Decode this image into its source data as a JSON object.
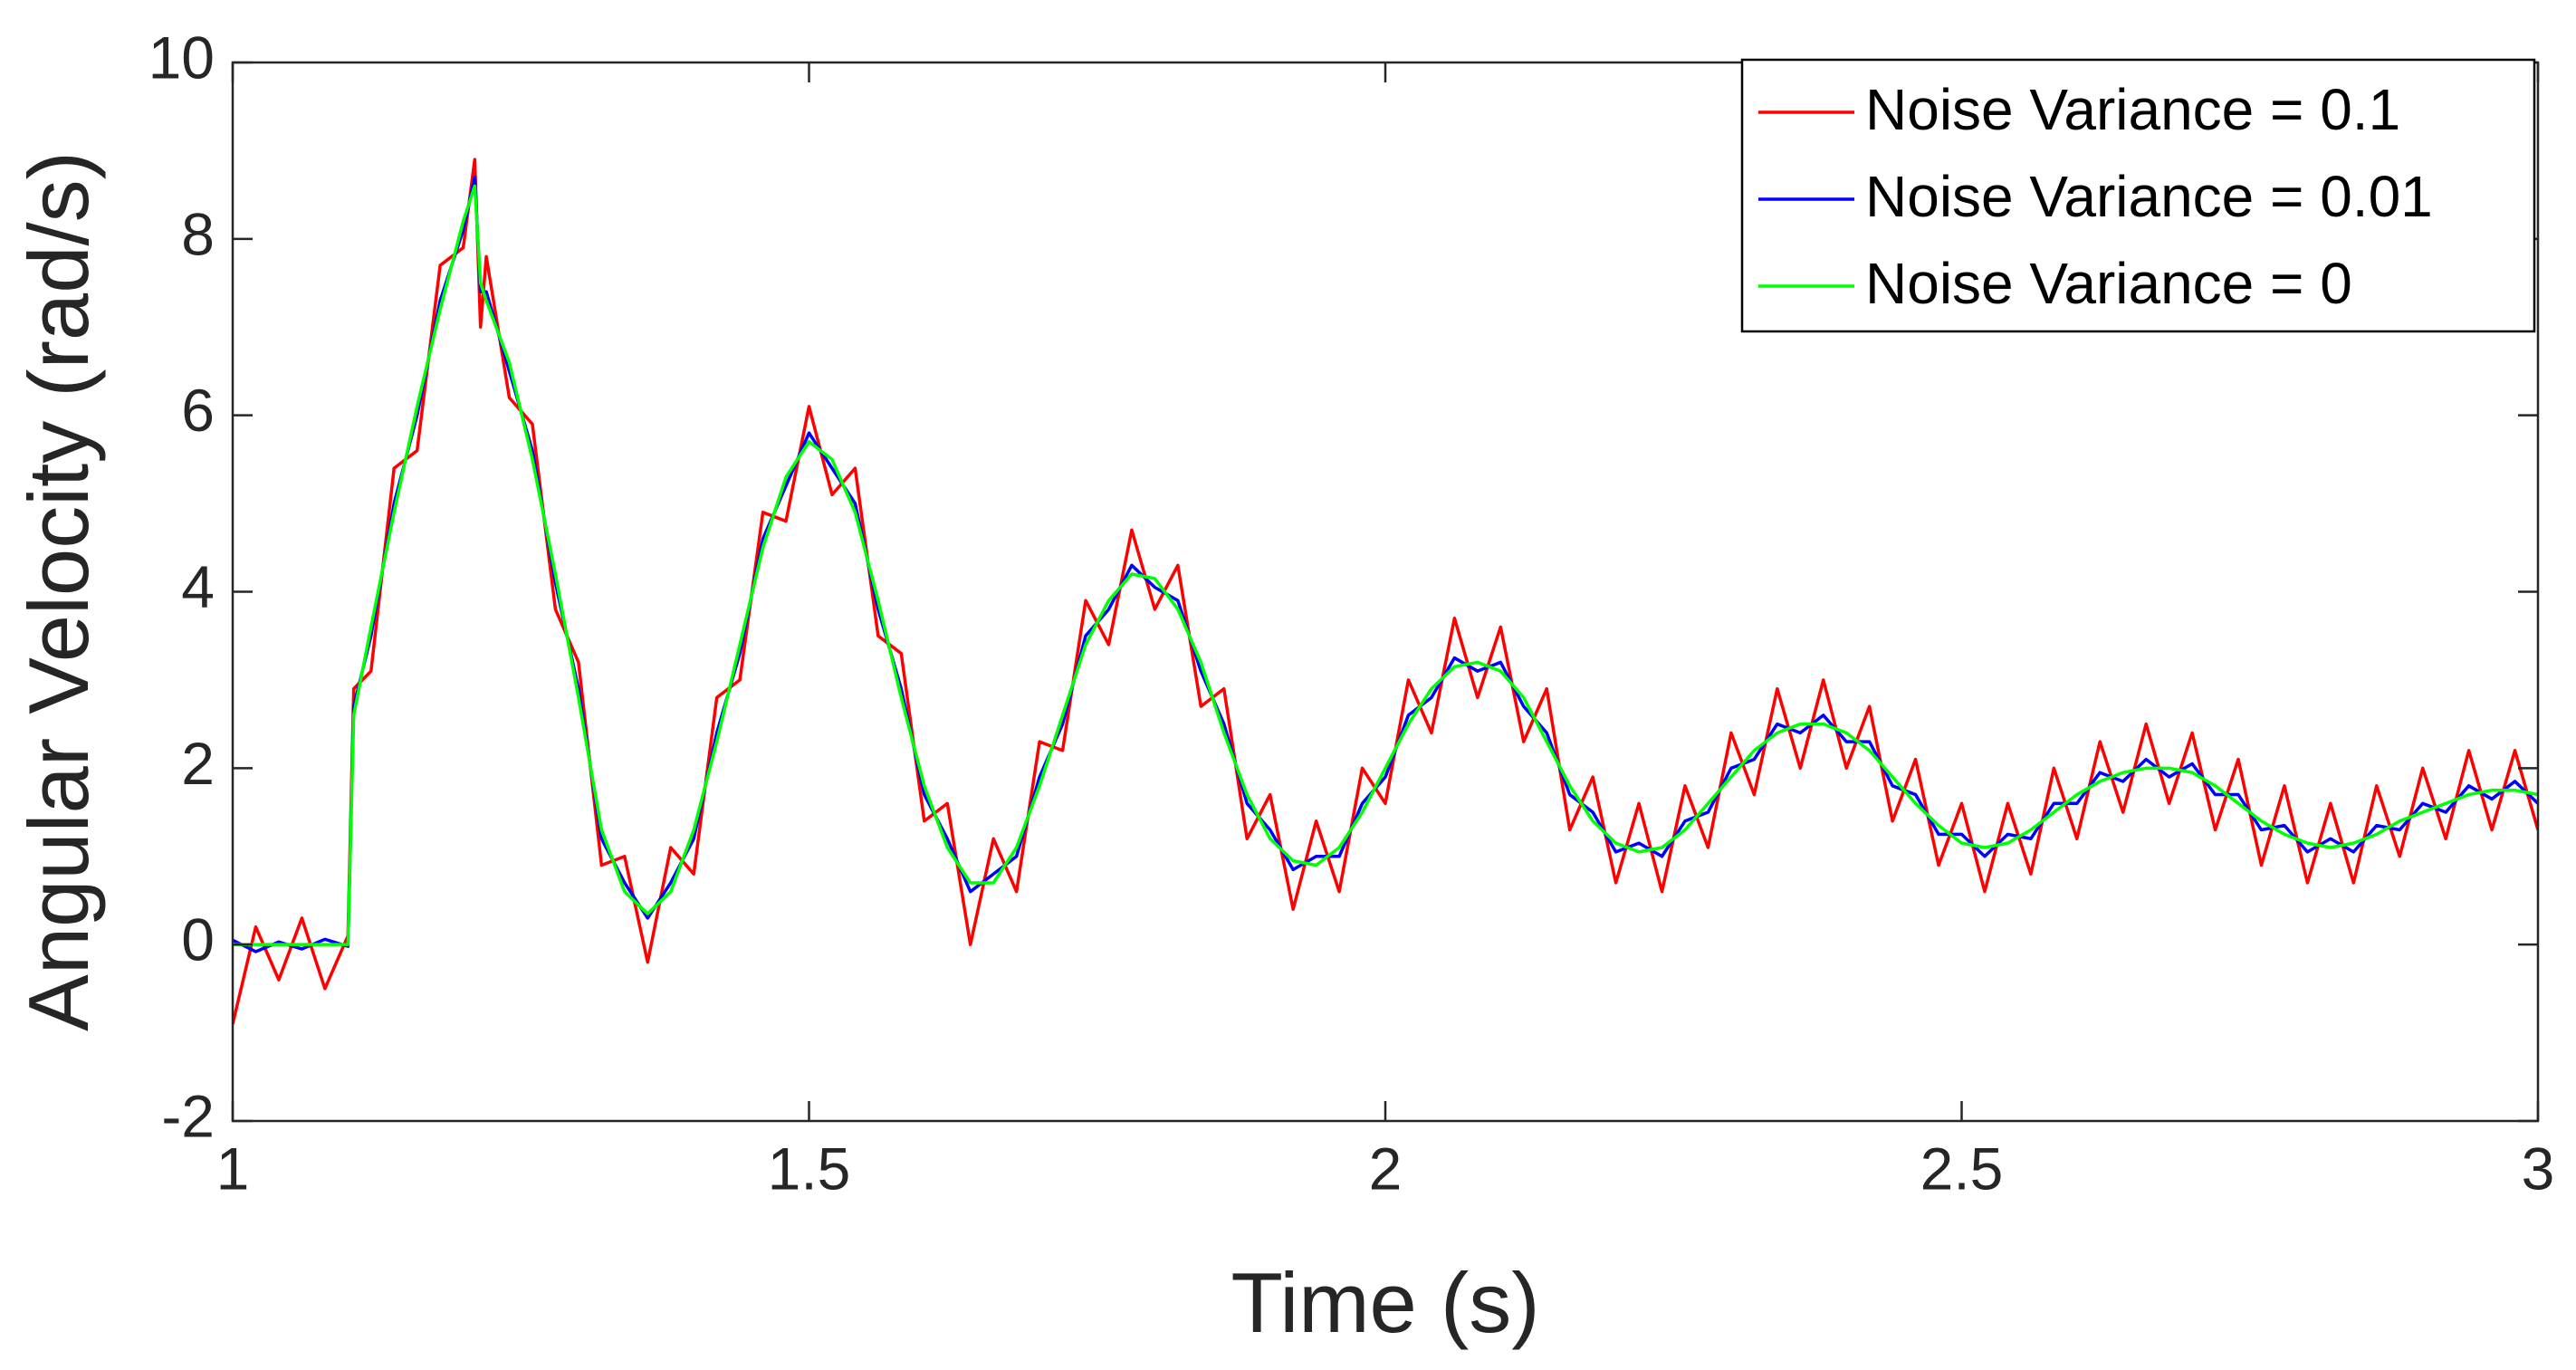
{
  "chart_data": {
    "type": "line",
    "x_label": "Time (s)",
    "y_label": "Angular Velocity (rad/s)",
    "x": [
      1.0,
      1.02,
      1.04,
      1.06,
      1.08,
      1.1,
      1.105,
      1.12,
      1.14,
      1.16,
      1.18,
      1.2,
      1.21,
      1.215,
      1.22,
      1.24,
      1.26,
      1.28,
      1.3,
      1.32,
      1.34,
      1.36,
      1.38,
      1.4,
      1.42,
      1.44,
      1.46,
      1.48,
      1.5,
      1.52,
      1.54,
      1.56,
      1.58,
      1.6,
      1.62,
      1.64,
      1.66,
      1.68,
      1.7,
      1.72,
      1.74,
      1.76,
      1.78,
      1.8,
      1.82,
      1.84,
      1.86,
      1.88,
      1.9,
      1.92,
      1.94,
      1.96,
      1.98,
      2.0,
      2.02,
      2.04,
      2.06,
      2.08,
      2.1,
      2.12,
      2.14,
      2.16,
      2.18,
      2.2,
      2.22,
      2.24,
      2.26,
      2.28,
      2.3,
      2.32,
      2.34,
      2.36,
      2.38,
      2.4,
      2.42,
      2.44,
      2.46,
      2.48,
      2.5,
      2.52,
      2.54,
      2.56,
      2.58,
      2.6,
      2.62,
      2.64,
      2.66,
      2.68,
      2.7,
      2.72,
      2.74,
      2.76,
      2.78,
      2.8,
      2.82,
      2.84,
      2.86,
      2.88,
      2.9,
      2.92,
      2.94,
      2.96,
      2.98,
      3.0
    ],
    "series": [
      {
        "name": "Noise Variance = 0.1",
        "color": "#ff0000",
        "values": [
          -0.9,
          0.2,
          -0.4,
          0.3,
          -0.5,
          0.1,
          2.9,
          3.1,
          5.4,
          5.6,
          7.7,
          7.9,
          8.9,
          7.0,
          7.8,
          6.2,
          5.9,
          3.8,
          3.2,
          0.9,
          1.0,
          -0.2,
          1.1,
          0.8,
          2.8,
          3.0,
          4.9,
          4.8,
          6.1,
          5.1,
          5.4,
          3.5,
          3.3,
          1.4,
          1.6,
          0.0,
          1.2,
          0.6,
          2.3,
          2.2,
          3.9,
          3.4,
          4.7,
          3.8,
          4.3,
          2.7,
          2.9,
          1.2,
          1.7,
          0.4,
          1.4,
          0.6,
          2.0,
          1.6,
          3.0,
          2.4,
          3.7,
          2.8,
          3.6,
          2.3,
          2.9,
          1.3,
          1.9,
          0.7,
          1.6,
          0.6,
          1.8,
          1.1,
          2.4,
          1.7,
          2.9,
          2.0,
          3.0,
          2.0,
          2.7,
          1.4,
          2.1,
          0.9,
          1.6,
          0.6,
          1.6,
          0.8,
          2.0,
          1.2,
          2.3,
          1.5,
          2.5,
          1.6,
          2.4,
          1.3,
          2.1,
          0.9,
          1.8,
          0.7,
          1.6,
          0.7,
          1.8,
          1.0,
          2.0,
          1.2,
          2.2,
          1.3,
          2.2,
          1.3
        ]
      },
      {
        "name": "Noise Variance = 0.01",
        "color": "#0000ff",
        "values": [
          0.05,
          -0.08,
          0.03,
          -0.05,
          0.06,
          -0.02,
          2.7,
          3.5,
          5.0,
          6.0,
          7.3,
          8.1,
          8.7,
          7.4,
          7.4,
          6.5,
          5.6,
          4.1,
          2.9,
          1.2,
          0.7,
          0.3,
          0.7,
          1.2,
          2.4,
          3.3,
          4.6,
          5.2,
          5.8,
          5.4,
          5.0,
          3.8,
          2.9,
          1.7,
          1.2,
          0.6,
          0.8,
          1.0,
          1.9,
          2.5,
          3.5,
          3.8,
          4.3,
          4.05,
          3.9,
          3.1,
          2.5,
          1.6,
          1.3,
          0.85,
          1.0,
          1.0,
          1.6,
          1.9,
          2.6,
          2.8,
          3.25,
          3.1,
          3.2,
          2.7,
          2.4,
          1.7,
          1.5,
          1.05,
          1.15,
          1.0,
          1.4,
          1.5,
          2.0,
          2.1,
          2.5,
          2.4,
          2.6,
          2.3,
          2.3,
          1.8,
          1.7,
          1.25,
          1.25,
          1.0,
          1.25,
          1.2,
          1.6,
          1.6,
          1.95,
          1.85,
          2.1,
          1.9,
          2.05,
          1.7,
          1.7,
          1.3,
          1.35,
          1.05,
          1.2,
          1.05,
          1.35,
          1.3,
          1.6,
          1.5,
          1.8,
          1.65,
          1.85,
          1.6
        ]
      },
      {
        "name": "Noise Variance = 0",
        "color": "#00ff00",
        "values": [
          0,
          0,
          0,
          0,
          0,
          0,
          2.6,
          3.6,
          4.9,
          6.1,
          7.2,
          8.2,
          8.6,
          7.5,
          7.3,
          6.6,
          5.5,
          4.2,
          2.8,
          1.3,
          0.6,
          0.35,
          0.6,
          1.3,
          2.3,
          3.4,
          4.5,
          5.3,
          5.7,
          5.5,
          4.9,
          3.9,
          2.8,
          1.8,
          1.1,
          0.7,
          0.7,
          1.1,
          1.8,
          2.6,
          3.4,
          3.9,
          4.2,
          4.15,
          3.8,
          3.2,
          2.4,
          1.7,
          1.2,
          0.95,
          0.9,
          1.1,
          1.5,
          2.0,
          2.5,
          2.9,
          3.15,
          3.2,
          3.1,
          2.8,
          2.3,
          1.8,
          1.4,
          1.15,
          1.05,
          1.1,
          1.3,
          1.6,
          1.9,
          2.2,
          2.4,
          2.5,
          2.5,
          2.4,
          2.2,
          1.9,
          1.6,
          1.35,
          1.15,
          1.1,
          1.15,
          1.3,
          1.5,
          1.7,
          1.85,
          1.95,
          2.0,
          2.0,
          1.95,
          1.8,
          1.6,
          1.4,
          1.25,
          1.15,
          1.1,
          1.15,
          1.25,
          1.4,
          1.5,
          1.6,
          1.7,
          1.75,
          1.75,
          1.7
        ]
      }
    ],
    "xlim": [
      1,
      3
    ],
    "xticks": [
      1,
      1.5,
      2,
      2.5,
      3
    ],
    "ylim": [
      -2,
      10
    ],
    "yticks": [
      -2,
      0,
      2,
      4,
      6,
      8,
      10
    ],
    "grid": false,
    "legend": "upper right"
  }
}
